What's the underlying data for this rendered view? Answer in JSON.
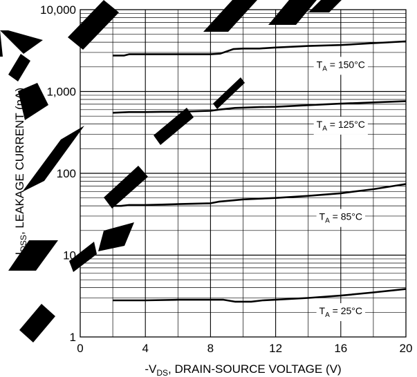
{
  "chart_data": {
    "type": "line",
    "xlabel": "-V_DS, DRAIN-SOURCE VOLTAGE (V)",
    "xlabel_parts": {
      "pre": "-V",
      "sub": "DS",
      "post": ", DRAIN-SOURCE VOLTAGE (V)"
    },
    "ylabel": "-I_DSS, LEAKAGE CURRENT (nA)",
    "ylabel_parts": {
      "pre": "-I",
      "sub": "DSS",
      "post": ", LEAKAGE CURRENT (nA)"
    },
    "xlim": [
      0,
      20
    ],
    "ylim": [
      1,
      10000
    ],
    "yscale": "log",
    "grid": true,
    "x_ticks": [
      {
        "value": 0,
        "label": "0"
      },
      {
        "value": 4,
        "label": "4"
      },
      {
        "value": 8,
        "label": "8"
      },
      {
        "value": 12,
        "label": "12"
      },
      {
        "value": 16,
        "label": "16"
      },
      {
        "value": 20,
        "label": "20"
      }
    ],
    "y_ticks": [
      {
        "value": 1,
        "label": "1"
      },
      {
        "value": 10,
        "label": "10"
      },
      {
        "value": 100,
        "label": "100"
      },
      {
        "value": 1000,
        "label": "1,000"
      },
      {
        "value": 10000,
        "label": "10,000"
      }
    ],
    "series": [
      {
        "name": "T_A = 150°C",
        "label_parts": {
          "pre": "T",
          "sub": "A",
          "post": " = 150°C"
        },
        "label_at": {
          "x": 16,
          "y": 2100
        },
        "x": [
          2,
          2.7,
          3,
          4,
          6,
          8,
          8.6,
          9.4,
          10,
          11,
          12,
          14,
          16,
          18,
          20
        ],
        "y": [
          2750,
          2750,
          2850,
          2850,
          2850,
          2850,
          2900,
          3300,
          3350,
          3350,
          3450,
          3600,
          3700,
          3900,
          4100
        ]
      },
      {
        "name": "T_A = 125°C",
        "label_parts": {
          "pre": "T",
          "sub": "A",
          "post": " = 125°C"
        },
        "label_at": {
          "x": 16,
          "y": 390
        },
        "x": [
          2,
          3,
          4,
          5,
          6,
          8,
          8.5,
          9.5,
          10,
          11,
          12,
          14,
          16,
          18,
          20
        ],
        "y": [
          550,
          560,
          560,
          565,
          565,
          580,
          600,
          630,
          635,
          645,
          650,
          680,
          710,
          735,
          760
        ]
      },
      {
        "name": "T_A = 85°C",
        "label_parts": {
          "pre": "T",
          "sub": "A",
          "post": " = 85°C"
        },
        "label_at": {
          "x": 16,
          "y": 29
        },
        "x": [
          2,
          2.5,
          3,
          4,
          5,
          6,
          8,
          8.5,
          9.5,
          10,
          12,
          14,
          16,
          18,
          20
        ],
        "y": [
          40,
          40,
          41,
          41,
          41.5,
          42,
          43,
          45,
          47,
          48,
          50,
          53,
          57,
          64,
          74
        ]
      },
      {
        "name": "T_A = 25°C",
        "label_parts": {
          "pre": "T",
          "sub": "A",
          "post": " = 25°C"
        },
        "label_at": {
          "x": 16,
          "y": 2.05
        },
        "x": [
          2,
          4,
          6,
          8,
          8.8,
          9.5,
          10.5,
          11.2,
          12,
          14,
          16,
          18,
          20
        ],
        "y": [
          2.8,
          2.8,
          2.85,
          2.85,
          2.85,
          2.7,
          2.7,
          2.8,
          2.85,
          3.0,
          3.2,
          3.5,
          3.85
        ]
      }
    ],
    "watermark": "PRELIMINARY DESIGN",
    "watermark_color": "#000000",
    "line_color": "#000000",
    "grid_color": "#000000"
  }
}
